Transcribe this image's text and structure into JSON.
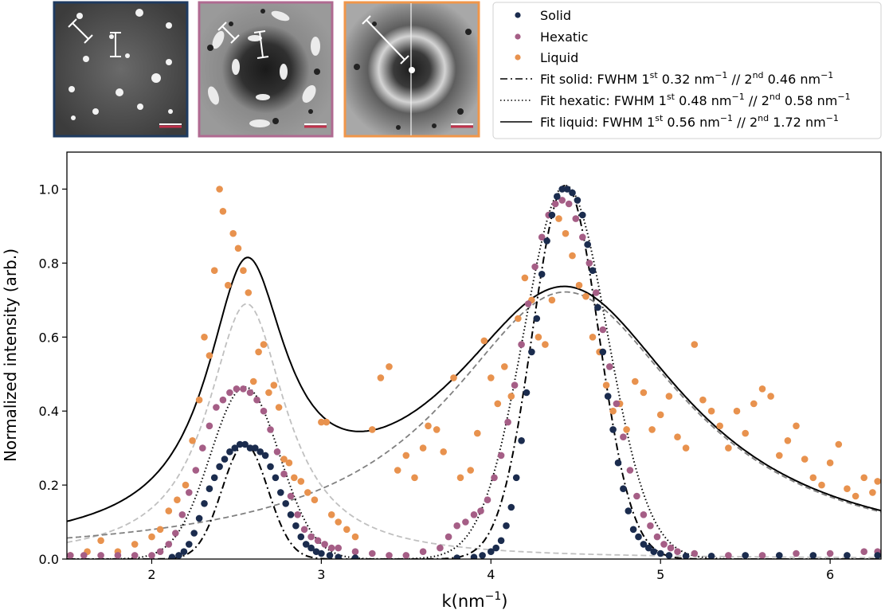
{
  "colors": {
    "solid": "#1b2c4e",
    "hexatic": "#a55e86",
    "liquid": "#e8924e",
    "frame_solid": "#1f3b60",
    "frame_hexatic": "#b06a91",
    "frame_liquid": "#f0964a",
    "gauss_light": "#c0c0c0",
    "gauss_dark": "#808080"
  },
  "insets": [
    {
      "name": "solid",
      "scale_bar_color": "#c0304a"
    },
    {
      "name": "hexatic",
      "scale_bar_color": "#c0304a"
    },
    {
      "name": "liquid",
      "scale_bar_color": "#c0304a"
    }
  ],
  "legend": {
    "entries": [
      {
        "kind": "dot",
        "series": "solid",
        "text": "Solid"
      },
      {
        "kind": "dot",
        "series": "hexatic",
        "text": "Hexatic"
      },
      {
        "kind": "dot",
        "series": "liquid",
        "text": "Liquid"
      },
      {
        "kind": "dashdot",
        "a": "Fit solid: FWHM 1",
        "s1": "st",
        "b": " 0.32 nm",
        "e1": "−1",
        "c": " // 2",
        "s2": "nd",
        "d": " 0.46 nm",
        "e2": "−1"
      },
      {
        "kind": "dotted",
        "a": "Fit hexatic: FWHM 1",
        "s1": "st",
        "b": " 0.48 nm",
        "e1": "−1",
        "c": " // 2",
        "s2": "nd",
        "d": " 0.58 nm",
        "e2": "−1"
      },
      {
        "kind": "solid",
        "a": "Fit liquid: FWHM 1",
        "s1": "st",
        "b": " 0.56 nm",
        "e1": "−1",
        "c": " // 2",
        "s2": "nd",
        "d": " 1.72 nm",
        "e2": "−1"
      }
    ]
  },
  "axes": {
    "ylabel": "Normalized intensity (arb.)",
    "xlabel_main": "k(nm",
    "xlabel_exp": "−1",
    "xlabel_close": ")"
  },
  "chart_data": {
    "type": "scatter",
    "xlim": [
      1.5,
      6.3
    ],
    "ylim": [
      0.0,
      1.1
    ],
    "xticks": [
      2,
      3,
      4,
      5,
      6
    ],
    "yticks": [
      0.0,
      0.2,
      0.4,
      0.6,
      0.8,
      1.0
    ],
    "grid": false,
    "legend_position": "top-right (outside)",
    "series": [
      {
        "name": "Solid",
        "kind": "points",
        "color": "#1b2c4e",
        "points": [
          [
            2.12,
            0.005
          ],
          [
            2.16,
            0.01
          ],
          [
            2.19,
            0.02
          ],
          [
            2.22,
            0.04
          ],
          [
            2.25,
            0.07
          ],
          [
            2.28,
            0.11
          ],
          [
            2.31,
            0.15
          ],
          [
            2.34,
            0.19
          ],
          [
            2.37,
            0.22
          ],
          [
            2.4,
            0.25
          ],
          [
            2.43,
            0.27
          ],
          [
            2.46,
            0.29
          ],
          [
            2.49,
            0.3
          ],
          [
            2.52,
            0.31
          ],
          [
            2.55,
            0.31
          ],
          [
            2.58,
            0.3
          ],
          [
            2.61,
            0.3
          ],
          [
            2.64,
            0.29
          ],
          [
            2.67,
            0.28
          ],
          [
            2.7,
            0.25
          ],
          [
            2.73,
            0.22
          ],
          [
            2.76,
            0.18
          ],
          [
            2.79,
            0.15
          ],
          [
            2.82,
            0.12
          ],
          [
            2.85,
            0.09
          ],
          [
            2.88,
            0.06
          ],
          [
            2.91,
            0.04
          ],
          [
            2.94,
            0.03
          ],
          [
            2.97,
            0.02
          ],
          [
            3.0,
            0.015
          ],
          [
            3.05,
            0.01
          ],
          [
            3.1,
            0.005
          ],
          [
            3.2,
            0.003
          ],
          [
            3.8,
            0.003
          ],
          [
            3.9,
            0.005
          ],
          [
            3.95,
            0.01
          ],
          [
            4.0,
            0.02
          ],
          [
            4.03,
            0.03
          ],
          [
            4.06,
            0.05
          ],
          [
            4.09,
            0.09
          ],
          [
            4.12,
            0.14
          ],
          [
            4.15,
            0.22
          ],
          [
            4.18,
            0.32
          ],
          [
            4.21,
            0.45
          ],
          [
            4.24,
            0.56
          ],
          [
            4.27,
            0.65
          ],
          [
            4.3,
            0.77
          ],
          [
            4.33,
            0.86
          ],
          [
            4.36,
            0.93
          ],
          [
            4.39,
            0.98
          ],
          [
            4.42,
            1.0
          ],
          [
            4.45,
            1.0
          ],
          [
            4.48,
            0.99
          ],
          [
            4.51,
            0.97
          ],
          [
            4.54,
            0.93
          ],
          [
            4.57,
            0.85
          ],
          [
            4.6,
            0.78
          ],
          [
            4.63,
            0.68
          ],
          [
            4.66,
            0.56
          ],
          [
            4.69,
            0.44
          ],
          [
            4.72,
            0.35
          ],
          [
            4.75,
            0.26
          ],
          [
            4.78,
            0.19
          ],
          [
            4.81,
            0.13
          ],
          [
            4.84,
            0.08
          ],
          [
            4.87,
            0.06
          ],
          [
            4.9,
            0.04
          ],
          [
            4.93,
            0.03
          ],
          [
            4.96,
            0.02
          ],
          [
            5.0,
            0.015
          ],
          [
            5.05,
            0.01
          ],
          [
            5.15,
            0.008
          ],
          [
            5.3,
            0.008
          ],
          [
            5.5,
            0.01
          ],
          [
            5.7,
            0.01
          ],
          [
            5.9,
            0.01
          ],
          [
            6.1,
            0.01
          ],
          [
            6.28,
            0.01
          ]
        ]
      },
      {
        "name": "Hexatic",
        "kind": "points",
        "color": "#a55e86",
        "points": [
          [
            1.52,
            0.01
          ],
          [
            1.6,
            0.01
          ],
          [
            1.7,
            0.01
          ],
          [
            1.8,
            0.01
          ],
          [
            1.9,
            0.01
          ],
          [
            2.0,
            0.01
          ],
          [
            2.05,
            0.02
          ],
          [
            2.1,
            0.04
          ],
          [
            2.14,
            0.07
          ],
          [
            2.18,
            0.12
          ],
          [
            2.22,
            0.18
          ],
          [
            2.26,
            0.24
          ],
          [
            2.3,
            0.3
          ],
          [
            2.34,
            0.36
          ],
          [
            2.38,
            0.41
          ],
          [
            2.42,
            0.43
          ],
          [
            2.46,
            0.45
          ],
          [
            2.5,
            0.46
          ],
          [
            2.54,
            0.46
          ],
          [
            2.58,
            0.45
          ],
          [
            2.62,
            0.43
          ],
          [
            2.66,
            0.4
          ],
          [
            2.7,
            0.35
          ],
          [
            2.74,
            0.29
          ],
          [
            2.78,
            0.23
          ],
          [
            2.82,
            0.17
          ],
          [
            2.86,
            0.12
          ],
          [
            2.9,
            0.08
          ],
          [
            2.94,
            0.06
          ],
          [
            2.98,
            0.05
          ],
          [
            3.02,
            0.04
          ],
          [
            3.06,
            0.03
          ],
          [
            3.1,
            0.03
          ],
          [
            3.2,
            0.02
          ],
          [
            3.3,
            0.015
          ],
          [
            3.4,
            0.01
          ],
          [
            3.5,
            0.01
          ],
          [
            3.6,
            0.02
          ],
          [
            3.7,
            0.03
          ],
          [
            3.75,
            0.06
          ],
          [
            3.8,
            0.09
          ],
          [
            3.85,
            0.1
          ],
          [
            3.9,
            0.12
          ],
          [
            3.94,
            0.13
          ],
          [
            3.98,
            0.16
          ],
          [
            4.02,
            0.22
          ],
          [
            4.06,
            0.28
          ],
          [
            4.1,
            0.37
          ],
          [
            4.14,
            0.47
          ],
          [
            4.18,
            0.58
          ],
          [
            4.22,
            0.69
          ],
          [
            4.26,
            0.79
          ],
          [
            4.3,
            0.87
          ],
          [
            4.34,
            0.93
          ],
          [
            4.38,
            0.96
          ],
          [
            4.42,
            0.97
          ],
          [
            4.46,
            0.96
          ],
          [
            4.5,
            0.92
          ],
          [
            4.54,
            0.87
          ],
          [
            4.58,
            0.8
          ],
          [
            4.62,
            0.72
          ],
          [
            4.66,
            0.62
          ],
          [
            4.7,
            0.52
          ],
          [
            4.74,
            0.42
          ],
          [
            4.78,
            0.33
          ],
          [
            4.82,
            0.24
          ],
          [
            4.86,
            0.17
          ],
          [
            4.9,
            0.12
          ],
          [
            4.94,
            0.09
          ],
          [
            4.98,
            0.06
          ],
          [
            5.02,
            0.04
          ],
          [
            5.06,
            0.03
          ],
          [
            5.1,
            0.02
          ],
          [
            5.2,
            0.015
          ],
          [
            5.4,
            0.01
          ],
          [
            5.6,
            0.01
          ],
          [
            5.8,
            0.015
          ],
          [
            6.0,
            0.015
          ],
          [
            6.2,
            0.02
          ],
          [
            6.28,
            0.02
          ]
        ]
      },
      {
        "name": "Liquid",
        "kind": "points",
        "color": "#e8924e",
        "points": [
          [
            1.52,
            0.01
          ],
          [
            1.62,
            0.02
          ],
          [
            1.7,
            0.05
          ],
          [
            1.8,
            0.02
          ],
          [
            1.9,
            0.04
          ],
          [
            2.0,
            0.06
          ],
          [
            2.05,
            0.08
          ],
          [
            2.1,
            0.13
          ],
          [
            2.15,
            0.16
          ],
          [
            2.2,
            0.2
          ],
          [
            2.24,
            0.32
          ],
          [
            2.28,
            0.43
          ],
          [
            2.31,
            0.6
          ],
          [
            2.34,
            0.55
          ],
          [
            2.37,
            0.78
          ],
          [
            2.4,
            1.0
          ],
          [
            2.42,
            0.94
          ],
          [
            2.45,
            0.74
          ],
          [
            2.48,
            0.88
          ],
          [
            2.51,
            0.84
          ],
          [
            2.54,
            0.78
          ],
          [
            2.57,
            0.72
          ],
          [
            2.6,
            0.48
          ],
          [
            2.63,
            0.56
          ],
          [
            2.66,
            0.58
          ],
          [
            2.69,
            0.45
          ],
          [
            2.72,
            0.47
          ],
          [
            2.75,
            0.41
          ],
          [
            2.78,
            0.27
          ],
          [
            2.81,
            0.26
          ],
          [
            2.84,
            0.22
          ],
          [
            2.88,
            0.21
          ],
          [
            2.92,
            0.18
          ],
          [
            2.96,
            0.16
          ],
          [
            3.0,
            0.37
          ],
          [
            3.03,
            0.37
          ],
          [
            3.06,
            0.12
          ],
          [
            3.1,
            0.1
          ],
          [
            3.15,
            0.08
          ],
          [
            3.2,
            0.06
          ],
          [
            3.3,
            0.35
          ],
          [
            3.35,
            0.49
          ],
          [
            3.4,
            0.52
          ],
          [
            3.45,
            0.24
          ],
          [
            3.5,
            0.28
          ],
          [
            3.55,
            0.22
          ],
          [
            3.6,
            0.3
          ],
          [
            3.63,
            0.36
          ],
          [
            3.68,
            0.35
          ],
          [
            3.72,
            0.29
          ],
          [
            3.78,
            0.49
          ],
          [
            3.82,
            0.22
          ],
          [
            3.88,
            0.24
          ],
          [
            3.92,
            0.34
          ],
          [
            3.96,
            0.59
          ],
          [
            4.0,
            0.49
          ],
          [
            4.04,
            0.42
          ],
          [
            4.08,
            0.52
          ],
          [
            4.12,
            0.44
          ],
          [
            4.16,
            0.65
          ],
          [
            4.2,
            0.76
          ],
          [
            4.24,
            0.7
          ],
          [
            4.28,
            0.6
          ],
          [
            4.32,
            0.58
          ],
          [
            4.36,
            0.7
          ],
          [
            4.4,
            0.92
          ],
          [
            4.44,
            0.88
          ],
          [
            4.48,
            0.82
          ],
          [
            4.52,
            0.74
          ],
          [
            4.56,
            0.71
          ],
          [
            4.6,
            0.6
          ],
          [
            4.64,
            0.56
          ],
          [
            4.68,
            0.47
          ],
          [
            4.72,
            0.4
          ],
          [
            4.76,
            0.42
          ],
          [
            4.8,
            0.35
          ],
          [
            4.85,
            0.48
          ],
          [
            4.9,
            0.45
          ],
          [
            4.95,
            0.35
          ],
          [
            5.0,
            0.39
          ],
          [
            5.05,
            0.44
          ],
          [
            5.1,
            0.33
          ],
          [
            5.15,
            0.3
          ],
          [
            5.2,
            0.58
          ],
          [
            5.25,
            0.43
          ],
          [
            5.3,
            0.4
          ],
          [
            5.35,
            0.36
          ],
          [
            5.4,
            0.3
          ],
          [
            5.45,
            0.4
          ],
          [
            5.5,
            0.34
          ],
          [
            5.55,
            0.42
          ],
          [
            5.6,
            0.46
          ],
          [
            5.65,
            0.44
          ],
          [
            5.7,
            0.28
          ],
          [
            5.75,
            0.32
          ],
          [
            5.8,
            0.36
          ],
          [
            5.85,
            0.27
          ],
          [
            5.9,
            0.22
          ],
          [
            5.95,
            0.2
          ],
          [
            6.0,
            0.26
          ],
          [
            6.05,
            0.31
          ],
          [
            6.1,
            0.19
          ],
          [
            6.15,
            0.17
          ],
          [
            6.2,
            0.22
          ],
          [
            6.25,
            0.18
          ],
          [
            6.28,
            0.21
          ]
        ]
      },
      {
        "name": "Fit solid",
        "kind": "fit",
        "style": "dashdot",
        "color": "#000000",
        "peaks": [
          {
            "center": 2.55,
            "height": 0.31,
            "fwhm": 0.32,
            "shape": "gauss"
          },
          {
            "center": 4.44,
            "height": 1.01,
            "fwhm": 0.46,
            "shape": "gauss"
          }
        ]
      },
      {
        "name": "Fit hexatic",
        "kind": "fit",
        "style": "dotted",
        "color": "#000000",
        "peaks": [
          {
            "center": 2.55,
            "height": 0.465,
            "fwhm": 0.48,
            "shape": "gauss"
          },
          {
            "center": 4.44,
            "height": 1.01,
            "fwhm": 0.58,
            "shape": "gauss"
          }
        ]
      },
      {
        "name": "Fit liquid",
        "kind": "fit",
        "style": "solid",
        "color": "#000000",
        "peaks": [
          {
            "center": 2.56,
            "height": 0.69,
            "fwhm": 0.56,
            "shape": "lorentz"
          },
          {
            "center": 4.44,
            "height": 0.722,
            "fwhm": 1.72,
            "shape": "lorentz"
          }
        ]
      },
      {
        "kind": "component",
        "style": "dashed",
        "color": "#c0c0c0",
        "peaks": [
          {
            "center": 2.56,
            "height": 0.69,
            "fwhm": 0.56,
            "shape": "lorentz"
          }
        ]
      },
      {
        "kind": "component",
        "style": "dashed",
        "color": "#808080",
        "peaks": [
          {
            "center": 4.44,
            "height": 0.722,
            "fwhm": 1.72,
            "shape": "lorentz"
          }
        ]
      }
    ]
  }
}
